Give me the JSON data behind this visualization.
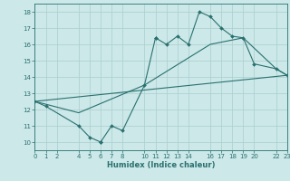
{
  "xlabel": "Humidex (Indice chaleur)",
  "xlim": [
    0,
    23
  ],
  "ylim": [
    9.5,
    18.5
  ],
  "xticks": [
    0,
    1,
    2,
    4,
    5,
    6,
    7,
    8,
    10,
    11,
    12,
    13,
    14,
    16,
    17,
    18,
    19,
    20,
    22,
    23
  ],
  "yticks": [
    10,
    11,
    12,
    13,
    14,
    15,
    16,
    17,
    18
  ],
  "bg_color": "#cce8e8",
  "grid_color": "#aacece",
  "line_color": "#2a7070",
  "line1_x": [
    0,
    1,
    4,
    5,
    6,
    6,
    7,
    8,
    10,
    11,
    11,
    12,
    13,
    14,
    15,
    16,
    17,
    18,
    19,
    20,
    22,
    23
  ],
  "line1_y": [
    12.5,
    12.2,
    11.0,
    10.3,
    10.0,
    10.0,
    11.0,
    10.7,
    13.5,
    16.4,
    16.4,
    16.0,
    16.5,
    16.0,
    18.0,
    17.7,
    17.0,
    16.5,
    16.4,
    14.8,
    14.5,
    14.1
  ],
  "line2_x": [
    0,
    23
  ],
  "line2_y": [
    12.5,
    14.1
  ],
  "line3_x": [
    0,
    4,
    10,
    16,
    19,
    22,
    23
  ],
  "line3_y": [
    12.5,
    11.8,
    13.5,
    16.0,
    16.4,
    14.5,
    14.1
  ]
}
